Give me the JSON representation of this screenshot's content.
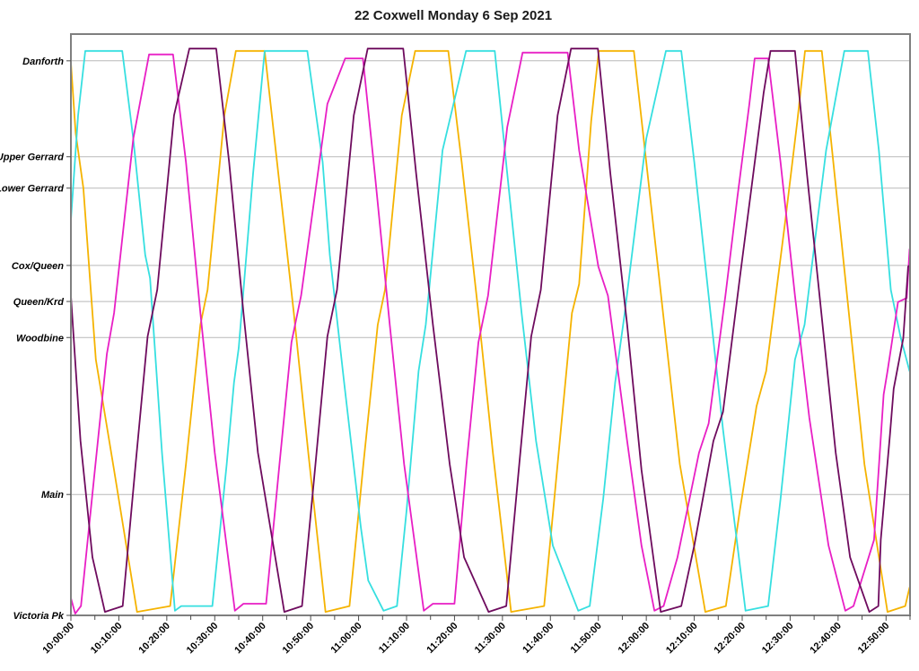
{
  "chart_data": {
    "type": "line",
    "title": "22 Coxwell Monday 6 Sep 2021",
    "xlabel": "",
    "ylabel": "",
    "grid": "horizontal-only",
    "legend_position": "none",
    "x_axis": {
      "start_label": "10:00:00",
      "end_minutes": 175,
      "label_interval_minutes": 10,
      "tick_interval_minutes": 5,
      "labels": [
        "10:00:00",
        "10:10:00",
        "10:20:00",
        "10:30:00",
        "10:40:00",
        "10:50:00",
        "11:00:00",
        "11:10:00",
        "11:20:00",
        "11:30:00",
        "11:40:00",
        "11:50:00",
        "12:00:00",
        "12:10:00",
        "12:20:00",
        "12:30:00",
        "12:40:00",
        "12:50:00"
      ]
    },
    "y_axis": {
      "kind": "route-stops",
      "range": [
        0,
        1
      ],
      "stops": [
        {
          "label": "Danforth",
          "pos": 0.954
        },
        {
          "label": "Upper Gerrard",
          "pos": 0.789
        },
        {
          "label": "Lower Gerrard",
          "pos": 0.735
        },
        {
          "label": "Cox/Queen",
          "pos": 0.602
        },
        {
          "label": "Queen/Krd",
          "pos": 0.54
        },
        {
          "label": "Woodbine",
          "pos": 0.478
        },
        {
          "label": "Main",
          "pos": 0.208
        },
        {
          "label": "Victoria Pk",
          "pos": 0.0
        }
      ]
    },
    "series": [
      {
        "name": "vehicle-gold",
        "color": "#f5b301",
        "points": [
          [
            0,
            0.951
          ],
          [
            1,
            0.83
          ],
          [
            2.6,
            0.735
          ],
          [
            5.2,
            0.44
          ],
          [
            9,
            0.25
          ],
          [
            13.8,
            0.006
          ],
          [
            20.7,
            0.016
          ],
          [
            24,
            0.26
          ],
          [
            27,
            0.5
          ],
          [
            28.5,
            0.56
          ],
          [
            32,
            0.86
          ],
          [
            34.4,
            0.971
          ],
          [
            40.4,
            0.971
          ],
          [
            43,
            0.78
          ],
          [
            46.5,
            0.52
          ],
          [
            49.5,
            0.28
          ],
          [
            53.1,
            0.006
          ],
          [
            58.1,
            0.016
          ],
          [
            61,
            0.26
          ],
          [
            64,
            0.5
          ],
          [
            65.5,
            0.56
          ],
          [
            69,
            0.86
          ],
          [
            71.8,
            0.971
          ],
          [
            78.7,
            0.971
          ],
          [
            81.5,
            0.78
          ],
          [
            85,
            0.52
          ],
          [
            88,
            0.28
          ],
          [
            91.8,
            0.006
          ],
          [
            98.7,
            0.016
          ],
          [
            101.5,
            0.26
          ],
          [
            104.5,
            0.52
          ],
          [
            106,
            0.57
          ],
          [
            108.5,
            0.85
          ],
          [
            110.1,
            0.971
          ],
          [
            117.4,
            0.971
          ],
          [
            120,
            0.78
          ],
          [
            123.5,
            0.52
          ],
          [
            127,
            0.26
          ],
          [
            132.3,
            0.006
          ],
          [
            136.6,
            0.016
          ],
          [
            139.5,
            0.18
          ],
          [
            143,
            0.36
          ],
          [
            145,
            0.42
          ],
          [
            149,
            0.68
          ],
          [
            151.5,
            0.85
          ],
          [
            153.1,
            0.971
          ],
          [
            156.6,
            0.971
          ],
          [
            159,
            0.78
          ],
          [
            162.5,
            0.5
          ],
          [
            165.5,
            0.26
          ],
          [
            170.3,
            0.006
          ],
          [
            174,
            0.016
          ],
          [
            174.9,
            0.048
          ]
        ]
      },
      {
        "name": "vehicle-cyan",
        "color": "#36dfe0",
        "points": [
          [
            0,
            0.68
          ],
          [
            1.5,
            0.86
          ],
          [
            3,
            0.971
          ],
          [
            10.7,
            0.971
          ],
          [
            13,
            0.82
          ],
          [
            15.5,
            0.62
          ],
          [
            16.5,
            0.58
          ],
          [
            19,
            0.28
          ],
          [
            21.7,
            0.008
          ],
          [
            23,
            0.016
          ],
          [
            29.5,
            0.016
          ],
          [
            32.5,
            0.26
          ],
          [
            34,
            0.4
          ],
          [
            35,
            0.46
          ],
          [
            38,
            0.76
          ],
          [
            40.4,
            0.971
          ],
          [
            49.3,
            0.971
          ],
          [
            52.5,
            0.78
          ],
          [
            54,
            0.62
          ],
          [
            57,
            0.4
          ],
          [
            60.5,
            0.15
          ],
          [
            62,
            0.06
          ],
          [
            65.2,
            0.008
          ],
          [
            68,
            0.016
          ],
          [
            70,
            0.18
          ],
          [
            72.5,
            0.42
          ],
          [
            74,
            0.5
          ],
          [
            77.5,
            0.8
          ],
          [
            82.4,
            0.971
          ],
          [
            88.4,
            0.971
          ],
          [
            91,
            0.76
          ],
          [
            94,
            0.52
          ],
          [
            97,
            0.3
          ],
          [
            100.5,
            0.12
          ],
          [
            105.8,
            0.008
          ],
          [
            108.2,
            0.016
          ],
          [
            111,
            0.2
          ],
          [
            113.5,
            0.4
          ],
          [
            115.5,
            0.52
          ],
          [
            120,
            0.82
          ],
          [
            124.1,
            0.971
          ],
          [
            127.3,
            0.971
          ],
          [
            130,
            0.78
          ],
          [
            133,
            0.55
          ],
          [
            136,
            0.32
          ],
          [
            140.7,
            0.008
          ],
          [
            145.4,
            0.016
          ],
          [
            148,
            0.2
          ],
          [
            151,
            0.44
          ],
          [
            153,
            0.5
          ],
          [
            157.5,
            0.8
          ],
          [
            161.3,
            0.971
          ],
          [
            166.2,
            0.971
          ],
          [
            168.5,
            0.8
          ],
          [
            171,
            0.56
          ],
          [
            173,
            0.48
          ],
          [
            174.9,
            0.42
          ]
        ]
      },
      {
        "name": "vehicle-magenta",
        "color": "#e81fc5",
        "points": [
          [
            0,
            0.03
          ],
          [
            0.9,
            0.003
          ],
          [
            2.1,
            0.016
          ],
          [
            5,
            0.25
          ],
          [
            7.5,
            0.45
          ],
          [
            9,
            0.52
          ],
          [
            13,
            0.82
          ],
          [
            16.3,
            0.965
          ],
          [
            21.3,
            0.965
          ],
          [
            24,
            0.78
          ],
          [
            27,
            0.52
          ],
          [
            30,
            0.28
          ],
          [
            34.2,
            0.008
          ],
          [
            36,
            0.02
          ],
          [
            40.7,
            0.02
          ],
          [
            43.5,
            0.26
          ],
          [
            46,
            0.47
          ],
          [
            48,
            0.55
          ],
          [
            53.5,
            0.88
          ],
          [
            57.2,
            0.958
          ],
          [
            60.9,
            0.958
          ],
          [
            63.5,
            0.75
          ],
          [
            66.5,
            0.5
          ],
          [
            69.5,
            0.26
          ],
          [
            73.6,
            0.008
          ],
          [
            75.5,
            0.02
          ],
          [
            80,
            0.02
          ],
          [
            82.5,
            0.26
          ],
          [
            85,
            0.47
          ],
          [
            87,
            0.55
          ],
          [
            91,
            0.84
          ],
          [
            94.2,
            0.968
          ],
          [
            103.6,
            0.968
          ],
          [
            106,
            0.8
          ],
          [
            110,
            0.6
          ],
          [
            112,
            0.55
          ],
          [
            116,
            0.3
          ],
          [
            119,
            0.12
          ],
          [
            121.7,
            0.008
          ],
          [
            123.6,
            0.016
          ],
          [
            126.5,
            0.1
          ],
          [
            131,
            0.28
          ],
          [
            133,
            0.33
          ],
          [
            136.5,
            0.55
          ],
          [
            139,
            0.72
          ],
          [
            141.5,
            0.88
          ],
          [
            142.6,
            0.958
          ],
          [
            145.4,
            0.958
          ],
          [
            148,
            0.78
          ],
          [
            151,
            0.55
          ],
          [
            154,
            0.34
          ],
          [
            158,
            0.12
          ],
          [
            161.5,
            0.008
          ],
          [
            163.2,
            0.016
          ],
          [
            167.5,
            0.13
          ],
          [
            169.5,
            0.38
          ],
          [
            170.3,
            0.42
          ],
          [
            172.5,
            0.539
          ],
          [
            174.3,
            0.546
          ],
          [
            174.9,
            0.63
          ]
        ]
      },
      {
        "name": "vehicle-purple",
        "color": "#6e0b5e",
        "points": [
          [
            0,
            0.55
          ],
          [
            2,
            0.3
          ],
          [
            4.5,
            0.1
          ],
          [
            7.1,
            0.006
          ],
          [
            10.8,
            0.016
          ],
          [
            13.5,
            0.26
          ],
          [
            16,
            0.48
          ],
          [
            18,
            0.56
          ],
          [
            21.5,
            0.86
          ],
          [
            24.7,
            0.975
          ],
          [
            30.3,
            0.975
          ],
          [
            33,
            0.78
          ],
          [
            36,
            0.52
          ],
          [
            39,
            0.28
          ],
          [
            44.5,
            0.006
          ],
          [
            48.2,
            0.016
          ],
          [
            51,
            0.26
          ],
          [
            53.5,
            0.48
          ],
          [
            55.5,
            0.56
          ],
          [
            59,
            0.86
          ],
          [
            61.9,
            0.975
          ],
          [
            69.3,
            0.975
          ],
          [
            72,
            0.76
          ],
          [
            75.5,
            0.5
          ],
          [
            79,
            0.26
          ],
          [
            82,
            0.1
          ],
          [
            87.1,
            0.006
          ],
          [
            90.8,
            0.016
          ],
          [
            93.5,
            0.26
          ],
          [
            96,
            0.48
          ],
          [
            98,
            0.56
          ],
          [
            101.5,
            0.86
          ],
          [
            104.3,
            0.975
          ],
          [
            109.9,
            0.975
          ],
          [
            112.5,
            0.76
          ],
          [
            116,
            0.5
          ],
          [
            119,
            0.25
          ],
          [
            123,
            0.006
          ],
          [
            127.3,
            0.016
          ],
          [
            130,
            0.12
          ],
          [
            134,
            0.3
          ],
          [
            136,
            0.35
          ],
          [
            139.5,
            0.58
          ],
          [
            142,
            0.74
          ],
          [
            144.5,
            0.9
          ],
          [
            145.9,
            0.971
          ],
          [
            151,
            0.971
          ],
          [
            153.5,
            0.76
          ],
          [
            156.5,
            0.52
          ],
          [
            159.5,
            0.28
          ],
          [
            162.5,
            0.1
          ],
          [
            166.5,
            0.006
          ],
          [
            168.4,
            0.016
          ],
          [
            168.9,
            0.13
          ],
          [
            170.8,
            0.31
          ],
          [
            171.6,
            0.39
          ],
          [
            173.6,
            0.477
          ],
          [
            174.6,
            0.6
          ],
          [
            174.9,
            0.602
          ]
        ]
      }
    ]
  }
}
